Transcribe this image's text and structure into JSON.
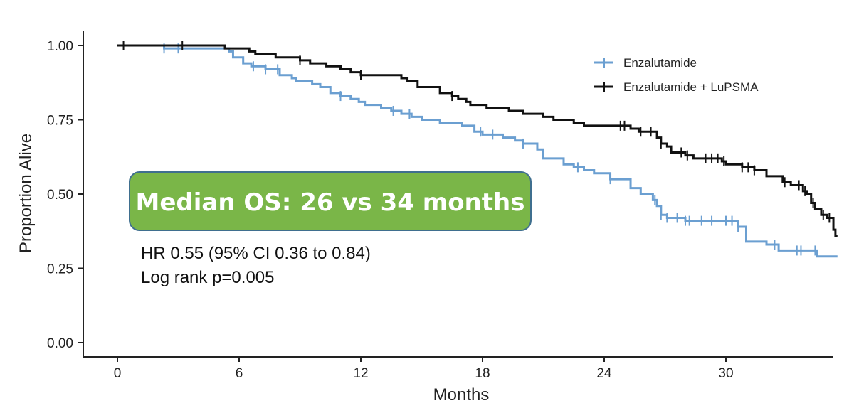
{
  "chart_data": {
    "type": "line",
    "subtype": "kaplan-meier",
    "xlabel": "Months",
    "ylabel": "Proportion Alive",
    "xlim": [
      0,
      35.5
    ],
    "ylim": [
      0,
      1.05
    ],
    "x_ticks": [
      "0",
      "6",
      "12",
      "18",
      "24",
      "30"
    ],
    "y_ticks": [
      "0.00",
      "0.25",
      "0.50",
      "0.75",
      "1.00"
    ],
    "grid": false,
    "legend_position": "top-right",
    "series": [
      {
        "name": "Enzalutamide",
        "color": "#6b9fd1",
        "steps": [
          [
            0,
            1.0
          ],
          [
            2.3,
            0.99
          ],
          [
            5.5,
            0.98
          ],
          [
            5.7,
            0.96
          ],
          [
            6.2,
            0.94
          ],
          [
            6.6,
            0.93
          ],
          [
            7.3,
            0.92
          ],
          [
            8.0,
            0.9
          ],
          [
            8.6,
            0.89
          ],
          [
            8.8,
            0.88
          ],
          [
            9.6,
            0.87
          ],
          [
            10.0,
            0.86
          ],
          [
            10.5,
            0.84
          ],
          [
            11.0,
            0.83
          ],
          [
            11.5,
            0.82
          ],
          [
            11.9,
            0.81
          ],
          [
            12.2,
            0.8
          ],
          [
            13.0,
            0.79
          ],
          [
            13.5,
            0.78
          ],
          [
            14.0,
            0.77
          ],
          [
            14.5,
            0.76
          ],
          [
            15.0,
            0.75
          ],
          [
            15.9,
            0.74
          ],
          [
            17.0,
            0.73
          ],
          [
            17.6,
            0.71
          ],
          [
            18.0,
            0.7
          ],
          [
            19.0,
            0.69
          ],
          [
            19.6,
            0.68
          ],
          [
            20.0,
            0.67
          ],
          [
            20.7,
            0.65
          ],
          [
            21.0,
            0.62
          ],
          [
            22.0,
            0.6
          ],
          [
            22.5,
            0.59
          ],
          [
            23.0,
            0.58
          ],
          [
            23.5,
            0.57
          ],
          [
            24.3,
            0.55
          ],
          [
            25.3,
            0.52
          ],
          [
            25.8,
            0.5
          ],
          [
            26.4,
            0.48
          ],
          [
            26.6,
            0.46
          ],
          [
            26.8,
            0.43
          ],
          [
            27.1,
            0.42
          ],
          [
            28.0,
            0.41
          ],
          [
            30.6,
            0.39
          ],
          [
            31.0,
            0.34
          ],
          [
            32.0,
            0.33
          ],
          [
            32.6,
            0.31
          ],
          [
            34.5,
            0.29
          ]
        ],
        "end": 35.5,
        "censor_times": [
          2.3,
          3.0,
          6.7,
          7.3,
          7.9,
          11.0,
          13.6,
          14.4,
          17.9,
          18.5,
          20.0,
          22.7,
          24.3,
          26.5,
          26.8,
          27.1,
          27.6,
          28.0,
          28.2,
          28.8,
          29.3,
          30.0,
          30.3,
          30.6,
          32.4,
          33.5,
          33.7,
          34.4
        ]
      },
      {
        "name": "Enzalutamide + LuPSMA",
        "color": "#111111",
        "steps": [
          [
            0,
            1.0
          ],
          [
            5.3,
            0.99
          ],
          [
            6.5,
            0.98
          ],
          [
            6.8,
            0.97
          ],
          [
            7.8,
            0.96
          ],
          [
            9.0,
            0.95
          ],
          [
            9.5,
            0.94
          ],
          [
            10.3,
            0.93
          ],
          [
            11.0,
            0.92
          ],
          [
            11.5,
            0.91
          ],
          [
            12.0,
            0.9
          ],
          [
            14.0,
            0.89
          ],
          [
            14.3,
            0.88
          ],
          [
            14.8,
            0.86
          ],
          [
            15.9,
            0.84
          ],
          [
            16.5,
            0.83
          ],
          [
            16.8,
            0.82
          ],
          [
            17.2,
            0.81
          ],
          [
            17.4,
            0.8
          ],
          [
            18.2,
            0.79
          ],
          [
            19.3,
            0.78
          ],
          [
            20.0,
            0.77
          ],
          [
            21.0,
            0.76
          ],
          [
            21.5,
            0.75
          ],
          [
            22.5,
            0.74
          ],
          [
            23.0,
            0.73
          ],
          [
            25.3,
            0.72
          ],
          [
            25.7,
            0.71
          ],
          [
            26.6,
            0.69
          ],
          [
            26.8,
            0.67
          ],
          [
            27.1,
            0.66
          ],
          [
            27.3,
            0.64
          ],
          [
            28.0,
            0.63
          ],
          [
            28.4,
            0.62
          ],
          [
            29.8,
            0.61
          ],
          [
            30.0,
            0.6
          ],
          [
            30.8,
            0.59
          ],
          [
            31.4,
            0.58
          ],
          [
            32.0,
            0.56
          ],
          [
            32.8,
            0.54
          ],
          [
            33.2,
            0.53
          ],
          [
            33.8,
            0.51
          ],
          [
            34.0,
            0.5
          ],
          [
            34.2,
            0.47
          ],
          [
            34.4,
            0.45
          ],
          [
            34.7,
            0.43
          ],
          [
            35.0,
            0.42
          ],
          [
            35.3,
            0.38
          ],
          [
            35.4,
            0.36
          ]
        ],
        "end": 35.5,
        "censor_times": [
          0.3,
          3.2,
          9.0,
          12.0,
          16.5,
          24.8,
          25.0,
          25.8,
          26.3,
          26.8,
          27.8,
          28.1,
          29.0,
          29.3,
          29.6,
          29.9,
          30.8,
          31.1,
          31.4,
          32.9,
          33.6,
          33.9,
          34.3,
          34.8,
          35.1
        ]
      }
    ],
    "annotations": {
      "highlight_box": "Median OS: 26 vs 34 months",
      "hr_text": "HR 0.55 (95% CI 0.36 to 0.84)",
      "logrank_text": "Log rank p=0.005"
    }
  }
}
